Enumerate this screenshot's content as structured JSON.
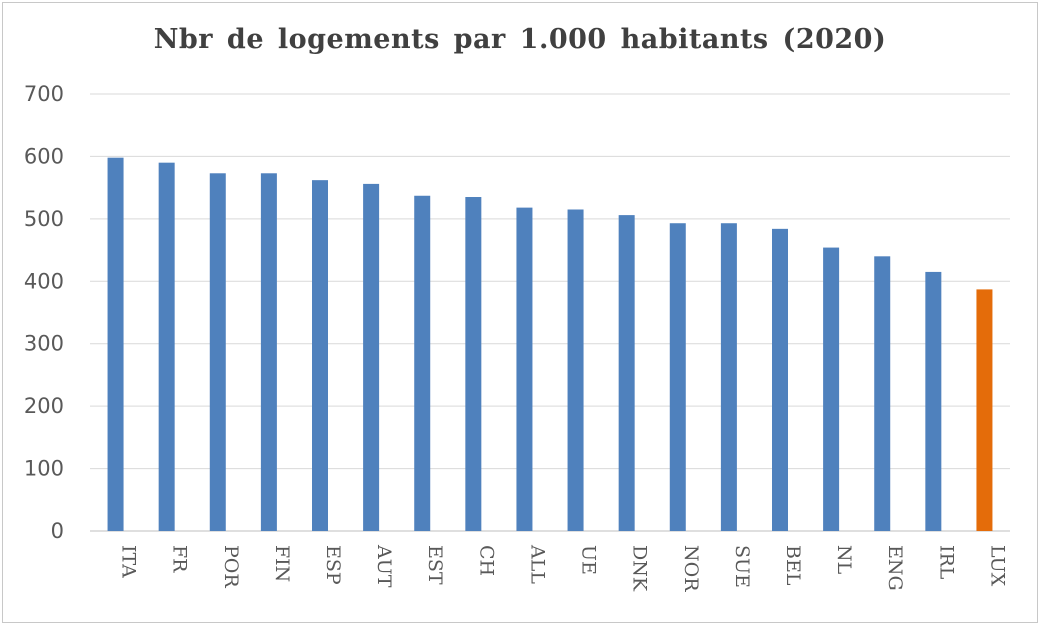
{
  "chart_data": {
    "type": "bar",
    "title": "Nbr de logements par 1.000 habitants (2020)",
    "xlabel": "",
    "ylabel": "",
    "ylim": [
      0,
      700
    ],
    "yticks": [
      0,
      100,
      200,
      300,
      400,
      500,
      600,
      700
    ],
    "grid": true,
    "legend": "none",
    "categories": [
      "ITA",
      "FR",
      "POR",
      "FIN",
      "ESP",
      "AUT",
      "EST",
      "CH",
      "ALL",
      "UE",
      "DNK",
      "NOR",
      "SUE",
      "BEL",
      "NL",
      "ENG",
      "IRL",
      "LUX"
    ],
    "values": [
      598,
      590,
      573,
      573,
      562,
      556,
      537,
      535,
      518,
      515,
      506,
      493,
      493,
      484,
      454,
      440,
      415,
      387
    ],
    "colors": {
      "default": "#4f81bd",
      "highlight": "#e46c0a",
      "highlight_category": "LUX",
      "grid": "#d9d9d9",
      "axis": "#bfbfbf"
    }
  }
}
